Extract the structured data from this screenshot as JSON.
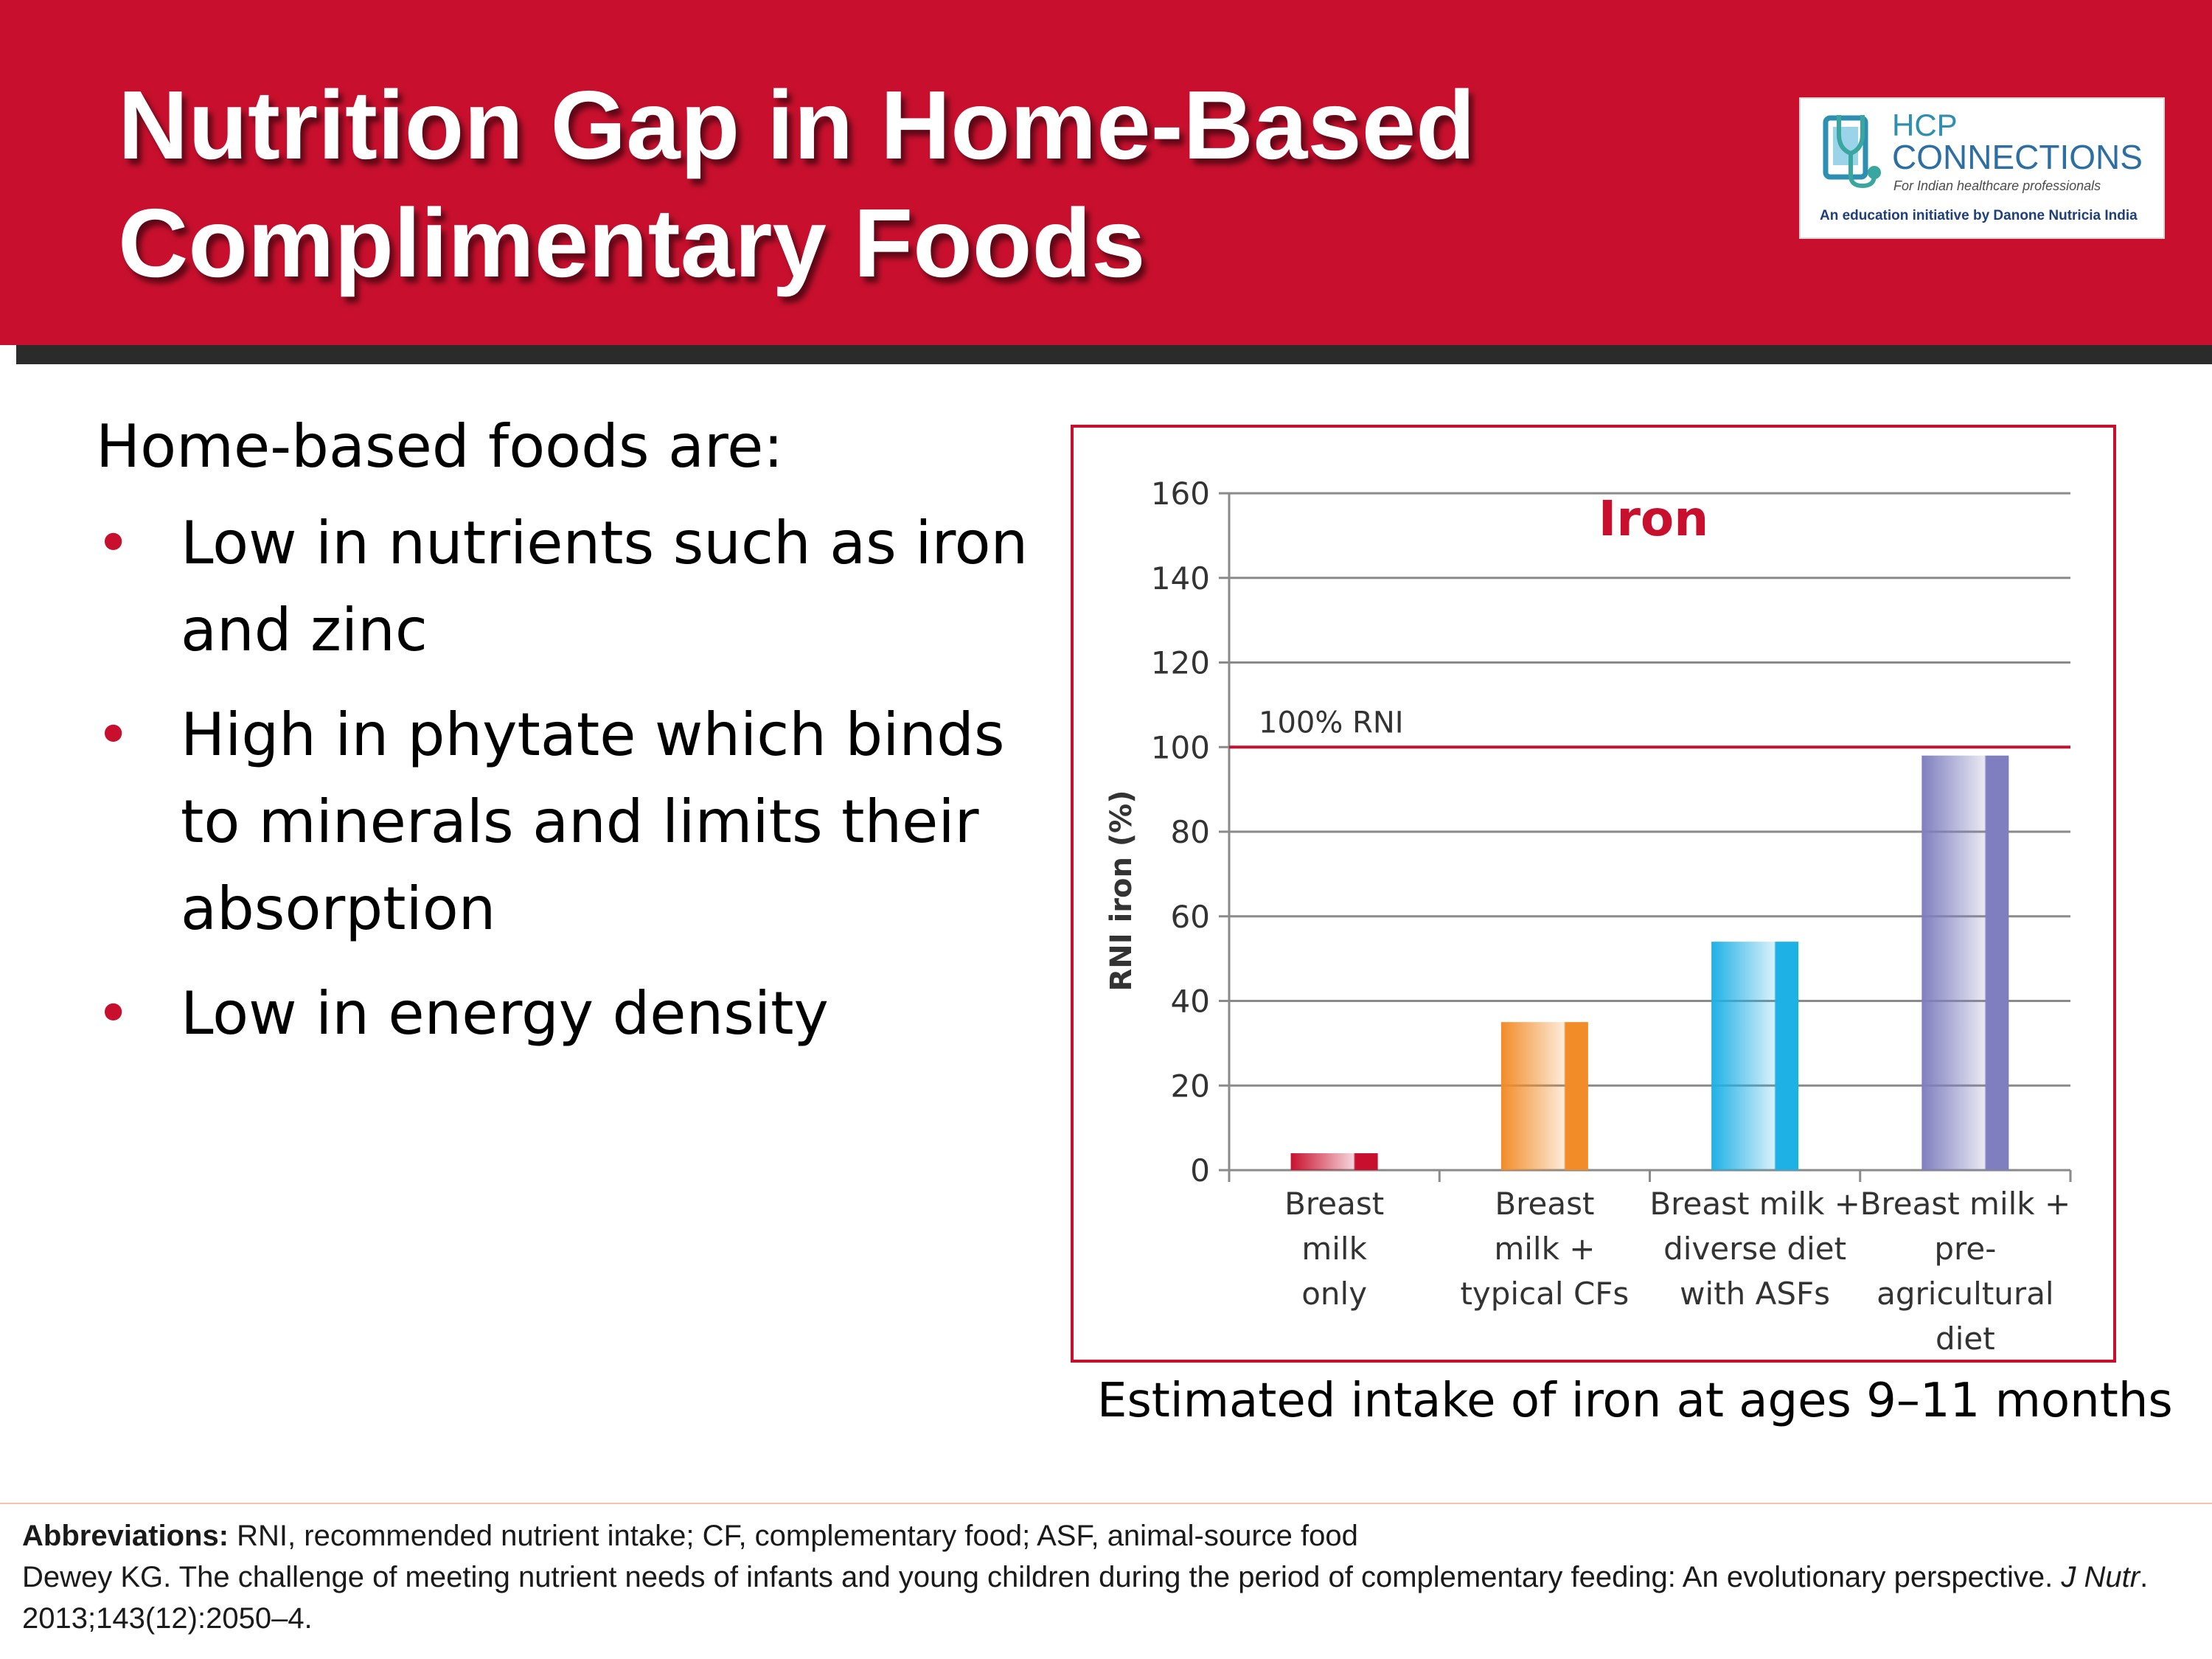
{
  "header": {
    "title_line1": "Nutrition Gap in Home-Based",
    "title_line2": "Complimentary Foods",
    "bg_color": "#c8102e"
  },
  "logo": {
    "line1": "HCP",
    "line2": "CONNECTIONS",
    "subtitle": "For Indian healthcare professionals",
    "tagline": "An education initiative by Danone Nutricia India"
  },
  "content": {
    "intro": "Home-based foods are:",
    "bullets": [
      "Low in nutrients such as iron and zinc",
      "High in phytate which binds to minerals and limits their absorption",
      "Low in energy density"
    ]
  },
  "chart_data": {
    "type": "bar",
    "title": "Iron",
    "ylabel": "RNI iron (%)",
    "xlabel": "",
    "ylim": [
      0,
      160
    ],
    "yticks": [
      0,
      20,
      40,
      60,
      80,
      100,
      120,
      140,
      160
    ],
    "grid": true,
    "reference_line": {
      "value": 100,
      "label": "100% RNI",
      "color": "#c8102e"
    },
    "categories": [
      [
        "Breast",
        "milk",
        "only"
      ],
      [
        "Breast",
        "milk +",
        "typical CFs"
      ],
      [
        "Breast milk +",
        "diverse diet",
        "with ASFs"
      ],
      [
        "Breast milk +",
        "pre-",
        "agricultural",
        "diet"
      ]
    ],
    "values": [
      4,
      35,
      54,
      98
    ],
    "bar_colors": [
      "#c8102e",
      "#f28c28",
      "#1eb1e6",
      "#7f7fbf"
    ]
  },
  "caption": "Estimated intake of iron at ages 9–11 months",
  "footer": {
    "abbr_label": "Abbreviations:",
    "abbr_text": " RNI, recommended nutrient intake; CF, complementary food; ASF, animal-source food",
    "ref_text": "Dewey KG. The challenge of meeting nutrient needs of infants and young children during the period of complementary feeding: An evolutionary perspective. ",
    "ref_journal": "J Nutr",
    "ref_tail": ". 2013;143(12):2050–4."
  }
}
